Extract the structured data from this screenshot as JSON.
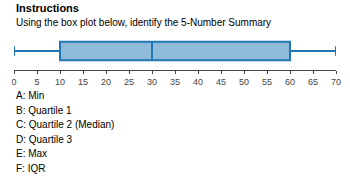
{
  "chart_data": {
    "type": "box",
    "title": "Instructions",
    "subtitle": "Using the box plot below, identify the 5-Number Summary",
    "min": 0,
    "q1": 10,
    "median": 30,
    "q3": 60,
    "max": 70,
    "xlim": [
      0,
      70
    ],
    "xticks": [
      0,
      5,
      10,
      15,
      20,
      25,
      30,
      35,
      40,
      45,
      50,
      55,
      60,
      65,
      70
    ],
    "grid": false,
    "tick_labels": "x",
    "annotations": [
      "A: Min",
      "B: Quartile 1",
      "C: Quartile 2 (Median)",
      "D: Quartile 3",
      "E: Max",
      "F: IQR"
    ]
  }
}
